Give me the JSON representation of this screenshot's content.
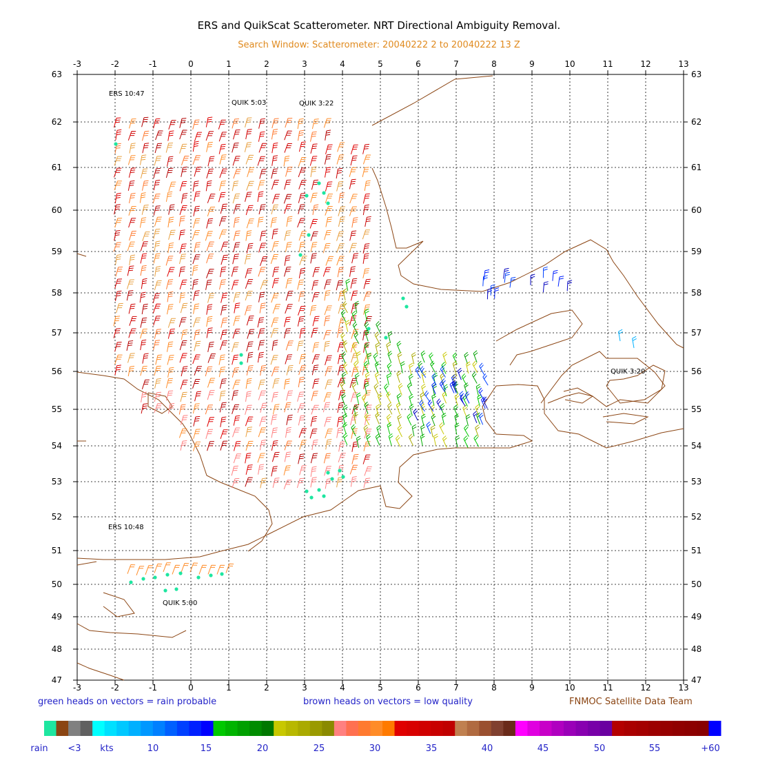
{
  "title": "ERS and QuikScat Scatterometer. NRT Directional Ambiguity Removal.",
  "subtitle": "Search Window: Scatterometer: 20040222 2 to 20040222 13 Z",
  "colors": {
    "title": "#000000",
    "subtitle": "#e08a1e",
    "note_blue": "#2323c8",
    "note_brown": "#8b4513",
    "coast": "#8b4513",
    "grid": "#000000"
  },
  "map": {
    "lon_ticks": [
      "-3",
      "-2",
      "-1",
      "0",
      "1",
      "2",
      "3",
      "4",
      "5",
      "6",
      "7",
      "8",
      "9",
      "10",
      "11",
      "12",
      "13"
    ],
    "lat_ticks": [
      "63",
      "62",
      "61",
      "60",
      "59",
      "58",
      "57",
      "56",
      "55",
      "54",
      "53",
      "52",
      "51",
      "50",
      "49",
      "48",
      "47"
    ],
    "lon_range": [
      -3,
      13
    ],
    "lat_range": [
      47,
      63
    ],
    "pass_labels": [
      "ERS 10:47",
      "QUIK 5:03",
      "QUIK 3:22",
      "ERS 10:48",
      "QUIK 5:00",
      "QUIK 3:20"
    ]
  },
  "notes": {
    "rain": "green heads on vectors = rain probable",
    "quality": "brown heads on vectors = low quality",
    "team": "FNMOC Satellite Data Team"
  },
  "colorbar": {
    "segments": [
      "#1ee6a0",
      "#8b4513",
      "#808080",
      "#606060",
      "#00ffff",
      "#00e0ff",
      "#00c8ff",
      "#00b0ff",
      "#0098ff",
      "#0080ff",
      "#0060ff",
      "#0040ff",
      "#0020ff",
      "#0000ff",
      "#00c800",
      "#00b400",
      "#00a000",
      "#008c00",
      "#007800",
      "#c8c800",
      "#b8b800",
      "#aaaa00",
      "#9a9a00",
      "#8a8a00",
      "#ff8080",
      "#ff7050",
      "#ff7a30",
      "#ff8c28",
      "#ff7a00",
      "#e00000",
      "#d80000",
      "#d00000",
      "#c80000",
      "#c00000",
      "#c08050",
      "#b06a40",
      "#9a5030",
      "#804030",
      "#6a2a1a",
      "#ff00ff",
      "#e000e0",
      "#c800c8",
      "#b000c0",
      "#9a00b8",
      "#8800b0",
      "#7800a8",
      "#6a00a0",
      "#b40000",
      "#aa0000",
      "#a40000",
      "#9c0000",
      "#960000",
      "#900000",
      "#8c0000",
      "#880000",
      "#0000ff"
    ],
    "labels": [
      "rain",
      "<3",
      "kts",
      "10",
      "15",
      "20",
      "25",
      "30",
      "35",
      "40",
      "45",
      "50",
      "55",
      "+60"
    ]
  }
}
